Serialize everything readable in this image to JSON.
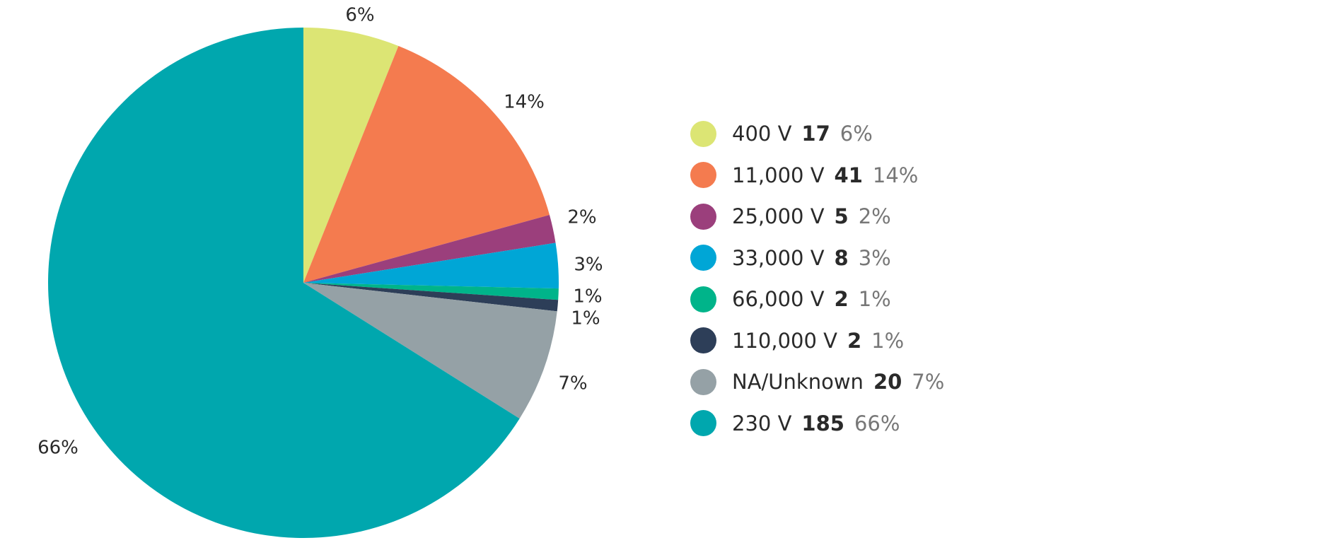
{
  "chart_data": {
    "type": "pie",
    "title": "",
    "start_angle": "top, clockwise",
    "legend_position": "right",
    "slices": [
      {
        "label": "400 V",
        "value": 17,
        "percent_label": "6%",
        "color": "#dce574"
      },
      {
        "label": "11,000 V",
        "value": 41,
        "percent_label": "14%",
        "color": "#f47b4f"
      },
      {
        "label": "25,000 V",
        "value": 5,
        "percent_label": "2%",
        "color": "#9b3f7c"
      },
      {
        "label": "33,000 V",
        "value": 8,
        "percent_label": "3%",
        "color": "#00a6d6"
      },
      {
        "label": "66,000 V",
        "value": 2,
        "percent_label": "1%",
        "color": "#00b48a"
      },
      {
        "label": "110,000 V",
        "value": 2,
        "percent_label": "1%",
        "color": "#2d3e58"
      },
      {
        "label": "NA/Unknown",
        "value": 20,
        "percent_label": "7%",
        "color": "#95a1a6"
      },
      {
        "label": "230 V",
        "value": 185,
        "percent_label": "66%",
        "color": "#00a7ae"
      }
    ]
  }
}
